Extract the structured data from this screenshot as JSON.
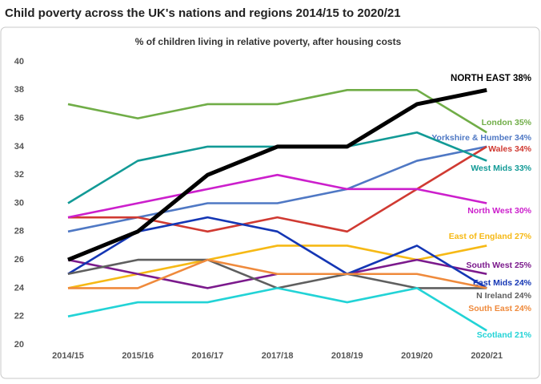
{
  "chart_data": {
    "type": "line",
    "title": "Child poverty across the UK's nations and regions 2014/15 to 2020/21",
    "subtitle": "% of children living in relative poverty, after housing costs",
    "categories": [
      "2014/15",
      "2015/16",
      "2016/17",
      "2017/18",
      "2018/19",
      "2019/20",
      "2020/21"
    ],
    "ylim": [
      20,
      40
    ],
    "yticks": [
      20,
      22,
      24,
      26,
      28,
      30,
      32,
      34,
      36,
      38,
      40
    ],
    "grid": false,
    "series": [
      {
        "name": "London 35%",
        "color": "#70ad47",
        "values": [
          37,
          36,
          37,
          37,
          38,
          38,
          35
        ]
      },
      {
        "name": "Yorkshire & Humber 34%",
        "color": "#4f78c4",
        "values": [
          28,
          29,
          30,
          30,
          31,
          33,
          34
        ]
      },
      {
        "name": "Wales 34%",
        "color": "#d03a32",
        "values": [
          29,
          29,
          28,
          29,
          28,
          31,
          34
        ]
      },
      {
        "name": "West Mids 33%",
        "color": "#129a96",
        "values": [
          30,
          33,
          34,
          34,
          34,
          35,
          33
        ]
      },
      {
        "name": "North West 30%",
        "color": "#cc1fcc",
        "values": [
          29,
          30,
          31,
          32,
          31,
          31,
          30
        ]
      },
      {
        "name": "East of England 27%",
        "color": "#f6b915",
        "values": [
          24,
          25,
          26,
          27,
          27,
          26,
          27
        ]
      },
      {
        "name": "South West 25%",
        "color": "#7b1a8c",
        "values": [
          26,
          25,
          24,
          25,
          25,
          26,
          25
        ]
      },
      {
        "name": "East Mids 24%",
        "color": "#1436b4",
        "values": [
          25,
          28,
          29,
          28,
          25,
          27,
          24
        ]
      },
      {
        "name": "N Ireland 24%",
        "color": "#5f5f5f",
        "values": [
          25,
          26,
          26,
          24,
          25,
          24,
          24
        ]
      },
      {
        "name": "South East 24%",
        "color": "#ef8a3c",
        "values": [
          24,
          24,
          26,
          25,
          25,
          25,
          24
        ]
      },
      {
        "name": "Scotland 21%",
        "color": "#22d3d6",
        "values": [
          22,
          23,
          23,
          24,
          23,
          24,
          21
        ]
      },
      {
        "name": "NORTH EAST 38%",
        "color": "#000000",
        "values": [
          26,
          28,
          32,
          34,
          34,
          37,
          38
        ]
      }
    ]
  }
}
